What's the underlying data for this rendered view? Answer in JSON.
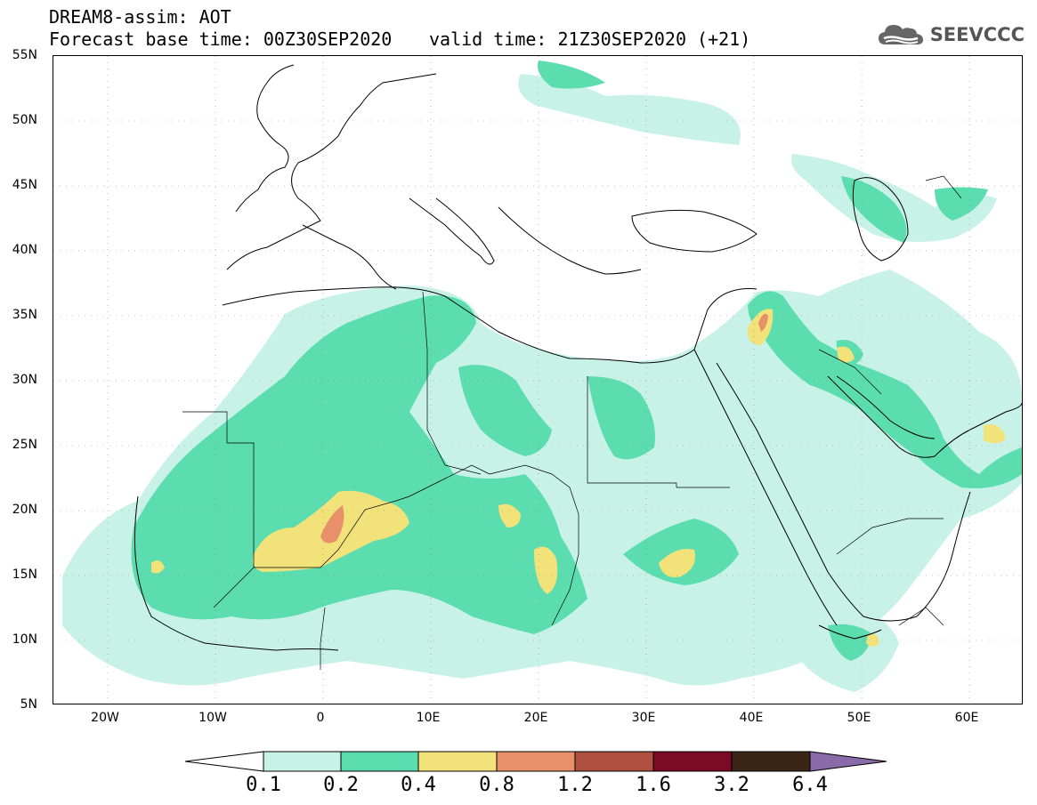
{
  "header": {
    "title": "DREAM8-assim: AOT",
    "forecast_base": "Forecast base time: 00Z30SEP2020",
    "valid_time": "valid time: 21Z30SEP2020 (+21)"
  },
  "logo": {
    "text": "SEEVCCC",
    "icon": "cloud-logo-icon"
  },
  "axes": {
    "lat_ticks": [
      "55N",
      "50N",
      "45N",
      "40N",
      "35N",
      "30N",
      "25N",
      "20N",
      "15N",
      "10N",
      "5N"
    ],
    "lon_ticks": [
      "20W",
      "10W",
      "0",
      "10E",
      "20E",
      "30E",
      "40E",
      "50E",
      "60E"
    ]
  },
  "colorbar": {
    "labels": [
      "0.1",
      "0.2",
      "0.4",
      "0.8",
      "1.2",
      "1.6",
      "3.2",
      "6.4"
    ],
    "colors": [
      "#ffffff",
      "#c8f2e8",
      "#5cddb0",
      "#f2e27a",
      "#e8906a",
      "#b05040",
      "#7a0a26",
      "#3a2415",
      "#8a6aa8"
    ]
  },
  "map": {
    "lon_range": [
      -25,
      65
    ],
    "lat_range": [
      5,
      55
    ],
    "grid": "dotted"
  }
}
